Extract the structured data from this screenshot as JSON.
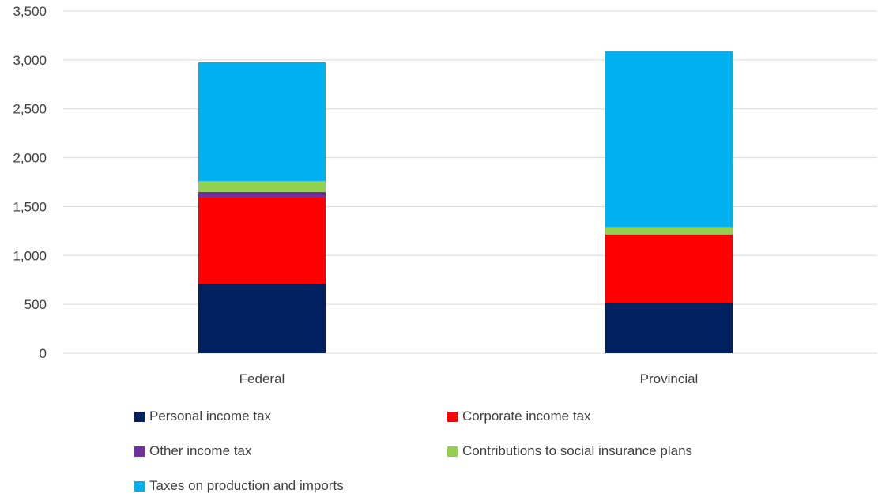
{
  "chart_data": {
    "type": "bar",
    "stacked": true,
    "categories": [
      "Federal",
      "Provincial"
    ],
    "series": [
      {
        "name": "Personal income tax",
        "color": "#002060",
        "values": [
          710,
          515
        ]
      },
      {
        "name": "Corporate income tax",
        "color": "#ff0000",
        "values": [
          890,
          700
        ]
      },
      {
        "name": "Other income tax",
        "color": "#7030a0",
        "values": [
          50,
          0
        ]
      },
      {
        "name": "Contributions to social insurance plans",
        "color": "#92d050",
        "values": [
          110,
          75
        ]
      },
      {
        "name": "Taxes on production and imports",
        "color": "#00b0f0",
        "values": [
          1215,
          1800
        ]
      }
    ],
    "y_ticks": [
      "0",
      "500",
      "1,000",
      "1,500",
      "2,000",
      "2,500",
      "3,000",
      "3,500"
    ],
    "ylim": [
      0,
      3500
    ],
    "grid": true,
    "legend_position": "bottom"
  }
}
